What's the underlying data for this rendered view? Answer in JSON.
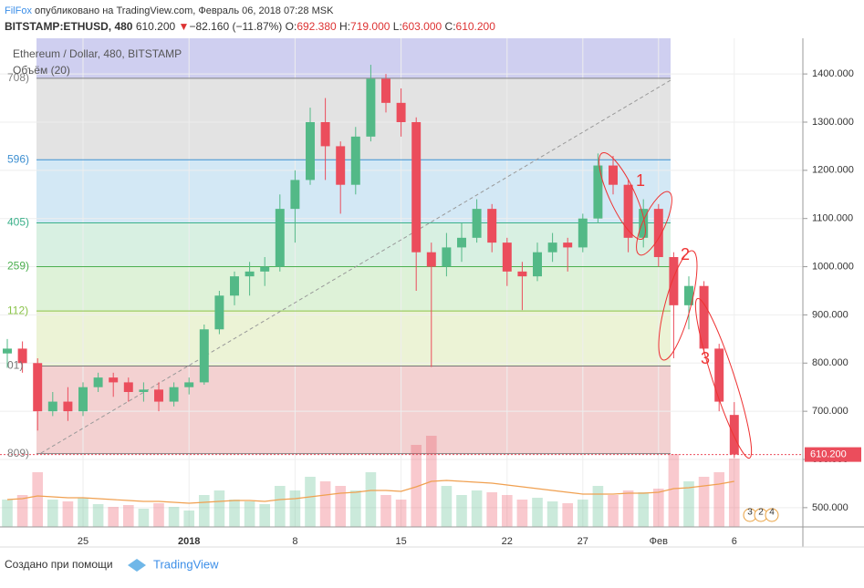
{
  "header": {
    "author": "FilFox",
    "published": "опубликовано на TradingView.com, Февраль 06, 2018 07:28 MSK",
    "symbol": "BITSTAMP:ETHUSD, 480",
    "price": "610.200",
    "arrow": "▼",
    "change": "−82.160 (−11.87%)",
    "o_label": "O:",
    "o": "692.380",
    "h_label": "H:",
    "h": "719.000",
    "l_label": "L:",
    "l": "603.000",
    "c_label": "C:",
    "c": "610.200"
  },
  "chart_data": {
    "type": "candlestick",
    "legend_title": "Ethereum / Dollar, 480, BITSTAMP",
    "volume_title": "Объём (20)",
    "categories": [
      null,
      null,
      null,
      null,
      null,
      "25",
      null,
      null,
      null,
      null,
      null,
      null,
      "2018",
      null,
      null,
      null,
      null,
      null,
      null,
      "8",
      null,
      null,
      null,
      null,
      null,
      null,
      "15",
      null,
      null,
      null,
      null,
      null,
      null,
      "22",
      null,
      null,
      null,
      null,
      "27",
      null,
      null,
      null,
      null,
      "Фев",
      null,
      null,
      null,
      null,
      "6"
    ],
    "ohlc": [
      [
        820,
        850,
        790,
        830
      ],
      [
        830,
        845,
        780,
        800
      ],
      [
        800,
        810,
        660,
        700
      ],
      [
        700,
        740,
        690,
        720
      ],
      [
        720,
        750,
        680,
        700
      ],
      [
        700,
        760,
        690,
        750
      ],
      [
        750,
        780,
        740,
        770
      ],
      [
        770,
        780,
        730,
        760
      ],
      [
        760,
        770,
        720,
        740
      ],
      [
        740,
        760,
        720,
        745
      ],
      [
        745,
        760,
        700,
        720
      ],
      [
        720,
        760,
        710,
        750
      ],
      [
        750,
        770,
        735,
        760
      ],
      [
        760,
        880,
        755,
        870
      ],
      [
        870,
        950,
        860,
        940
      ],
      [
        940,
        990,
        920,
        980
      ],
      [
        980,
        1010,
        940,
        990
      ],
      [
        990,
        1020,
        960,
        1000
      ],
      [
        1000,
        1150,
        990,
        1120
      ],
      [
        1120,
        1200,
        1050,
        1180
      ],
      [
        1180,
        1330,
        1170,
        1300
      ],
      [
        1300,
        1350,
        1180,
        1250
      ],
      [
        1250,
        1260,
        1110,
        1170
      ],
      [
        1170,
        1290,
        1150,
        1270
      ],
      [
        1270,
        1419,
        1260,
        1390
      ],
      [
        1390,
        1400,
        1320,
        1340
      ],
      [
        1340,
        1370,
        1270,
        1300
      ],
      [
        1300,
        1310,
        950,
        1030
      ],
      [
        1030,
        1050,
        792,
        1000
      ],
      [
        1000,
        1070,
        980,
        1040
      ],
      [
        1040,
        1090,
        1010,
        1060
      ],
      [
        1060,
        1140,
        1050,
        1120
      ],
      [
        1120,
        1130,
        1030,
        1050
      ],
      [
        1050,
        1060,
        960,
        990
      ],
      [
        990,
        1010,
        910,
        980
      ],
      [
        980,
        1050,
        970,
        1030
      ],
      [
        1030,
        1070,
        1010,
        1050
      ],
      [
        1050,
        1060,
        990,
        1040
      ],
      [
        1040,
        1110,
        1030,
        1100
      ],
      [
        1100,
        1235,
        1090,
        1210
      ],
      [
        1210,
        1230,
        1150,
        1170
      ],
      [
        1170,
        1180,
        1030,
        1060
      ],
      [
        1060,
        1140,
        1040,
        1120
      ],
      [
        1120,
        1130,
        1000,
        1020
      ],
      [
        1020,
        1030,
        810,
        920
      ],
      [
        920,
        980,
        870,
        960
      ],
      [
        960,
        970,
        820,
        830
      ],
      [
        830,
        840,
        700,
        720
      ],
      [
        692.38,
        719,
        603,
        610.2
      ]
    ],
    "volume": [
      30,
      35,
      60,
      30,
      28,
      32,
      25,
      22,
      24,
      20,
      26,
      22,
      18,
      35,
      40,
      30,
      28,
      25,
      45,
      40,
      55,
      50,
      45,
      40,
      60,
      35,
      30,
      90,
      100,
      45,
      35,
      40,
      38,
      35,
      30,
      32,
      28,
      26,
      30,
      45,
      35,
      40,
      38,
      42,
      80,
      50,
      55,
      60,
      75
    ],
    "volume_ma": [
      30,
      31,
      34,
      33,
      32,
      32,
      31,
      30,
      29,
      28,
      28,
      27,
      26,
      27,
      28,
      29,
      29,
      28,
      30,
      31,
      33,
      35,
      37,
      38,
      40,
      40,
      39,
      44,
      50,
      51,
      50,
      49,
      48,
      46,
      44,
      42,
      40,
      38,
      36,
      36,
      36,
      37,
      37,
      38,
      42,
      43,
      45,
      47,
      50
    ],
    "up_color": "#53b987",
    "down_color": "#eb4d5c",
    "ylim": [
      460,
      1474
    ],
    "yticks": [
      {
        "value": 500,
        "label": "500.000"
      },
      {
        "value": 600,
        "label": "600.000"
      },
      {
        "value": 700,
        "label": "700.000"
      },
      {
        "value": 800,
        "label": "800.000"
      },
      {
        "value": 900,
        "label": "900.000"
      },
      {
        "value": 1000,
        "label": "1000.000"
      },
      {
        "value": 1100,
        "label": "1100.000"
      },
      {
        "value": 1200,
        "label": "1200.000"
      },
      {
        "value": 1300,
        "label": "1300.000"
      },
      {
        "value": 1400,
        "label": "1400.000"
      }
    ],
    "grid": true,
    "fib_levels": [
      {
        "value": 1391,
        "label": "708)",
        "color": "#808080",
        "band": "#e3e3e3"
      },
      {
        "value": 1222,
        "label": "596)",
        "color": "#3d8fd1",
        "band": "#d3e8f5"
      },
      {
        "value": 1091,
        "label": "405)",
        "color": "#3ab08a",
        "band": "#d8f0e2"
      },
      {
        "value": 1000,
        "label": "259)",
        "color": "#4caf50",
        "band": "#def2d8"
      },
      {
        "value": 908,
        "label": "112)",
        "color": "#8bc34a",
        "band": "#ecf3d6"
      },
      {
        "value": 794,
        "label": "01)",
        "color": "#777777",
        "band": "#f3d1d1"
      },
      {
        "value": 612,
        "label": "809)",
        "color": "#808080",
        "band": null
      }
    ],
    "fib_top_band": "#cfcff0",
    "last_price": {
      "value": 610.2,
      "label": "610.200"
    },
    "annotations": [
      "1",
      "2",
      "3"
    ],
    "events": [
      "3",
      "2",
      "4"
    ]
  },
  "footer": {
    "text": "Создано при помощи",
    "brand": "TradingView"
  }
}
